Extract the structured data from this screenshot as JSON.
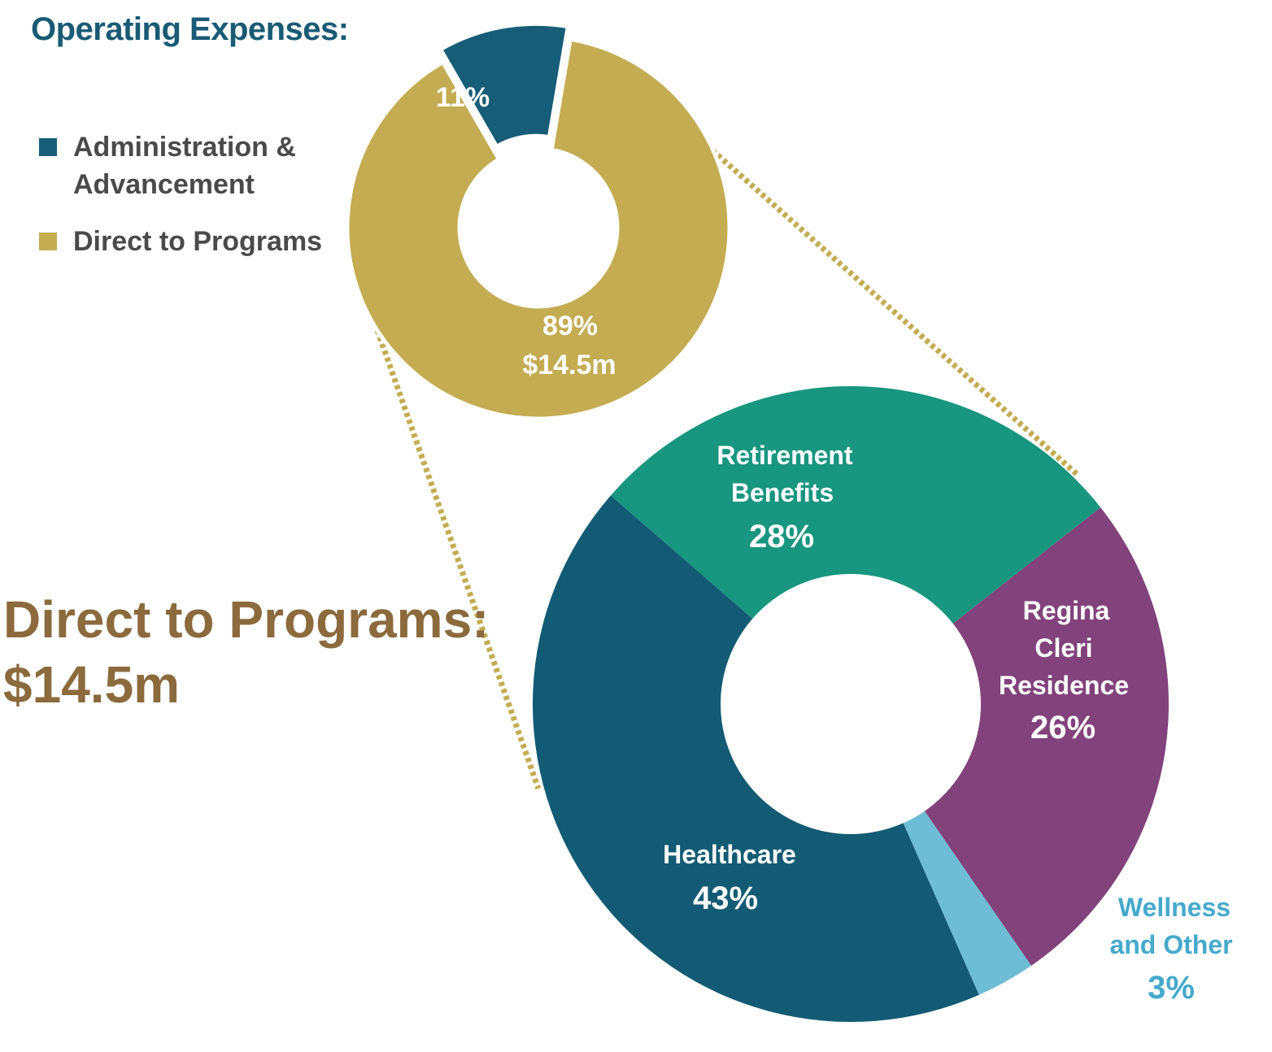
{
  "header": {
    "title": "Operating Expenses:"
  },
  "legend": {
    "items": [
      {
        "label": "Administration &\nAdvancement",
        "color": "#175d78"
      },
      {
        "label": "Direct to Programs",
        "color": "#c3ac52"
      }
    ]
  },
  "subheader": {
    "title": "Direct to Programs:",
    "amount": "$14.5m"
  },
  "colors": {
    "connector": "#c3ac52",
    "retirement": "#18967f",
    "regina": "#82427c",
    "wellness": "#6fbdd5",
    "healthcare": "#135b74",
    "label_light": "#ffffff",
    "label_wellness": "#46a9cc"
  },
  "chart_data": [
    {
      "type": "pie",
      "title": "Operating Expenses:",
      "slices": [
        {
          "name": "Administration & Advancement",
          "value": 11,
          "label": "11%",
          "color": "#175d78",
          "exploded": true
        },
        {
          "name": "Direct to Programs",
          "value": 89,
          "label": "89%",
          "sublabel": "$14.5m",
          "color": "#c3ac52"
        }
      ]
    },
    {
      "type": "pie",
      "title": "Direct to Programs: $14.5m",
      "slices": [
        {
          "name": "Retirement Benefits",
          "value": 28,
          "label_lines": [
            "Retirement",
            "Benefits"
          ],
          "label": "28%",
          "color": "#18967f"
        },
        {
          "name": "Regina Cleri Residence",
          "value": 26,
          "label_lines": [
            "Regina",
            "Cleri",
            "Residence"
          ],
          "label": "26%",
          "color": "#82427c"
        },
        {
          "name": "Wellness and Other",
          "value": 3,
          "label_lines": [
            "Wellness",
            "and Other"
          ],
          "label": "3%",
          "color": "#6fbdd5"
        },
        {
          "name": "Healthcare",
          "value": 43,
          "label_lines": [
            "Healthcare"
          ],
          "label": "43%",
          "color": "#135b74"
        }
      ]
    }
  ]
}
